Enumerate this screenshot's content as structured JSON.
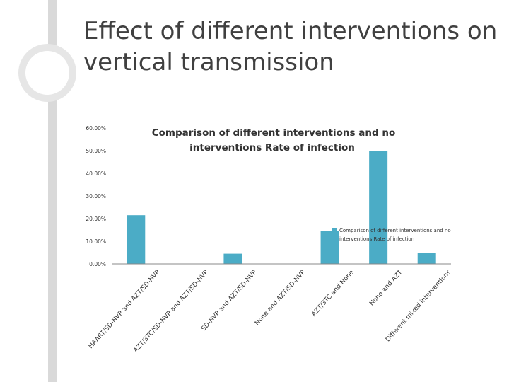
{
  "slide": {
    "title_line1": "Effect of different interventions on",
    "title_line2": "vertical transmission"
  },
  "chart_data": {
    "type": "bar",
    "title_line1": "Comparison of different interventions and no",
    "title_line2": "interventions Rate of infection",
    "categories": [
      "HAART/SD-NVP and AZT/SD-NVP",
      "AZT/3TC/SD-NVP and AZT/SD-NVP",
      "SD-NVP and AZT/SD-NVP",
      "None and AZT/SD-NVP",
      "AZT/3TC and None",
      "None and AZT",
      "Different mixed interventions"
    ],
    "series": [
      {
        "name": "Comparison of different interventions and no interventions Rate of infection",
        "values": [
          0.215,
          0.0,
          0.045,
          0.0,
          0.145,
          0.5,
          0.05
        ]
      }
    ],
    "ylim": [
      0,
      0.6
    ],
    "yticks": [
      "0.00%",
      "10.00%",
      "20.00%",
      "30.00%",
      "40.00%",
      "50.00%",
      "60.00%"
    ],
    "legend_label_line1": "Comparison of different interventions and no",
    "legend_label_line2": "interventions Rate of infection",
    "legend_position": "right",
    "grid": false,
    "bar_color": "#4bacc6"
  }
}
